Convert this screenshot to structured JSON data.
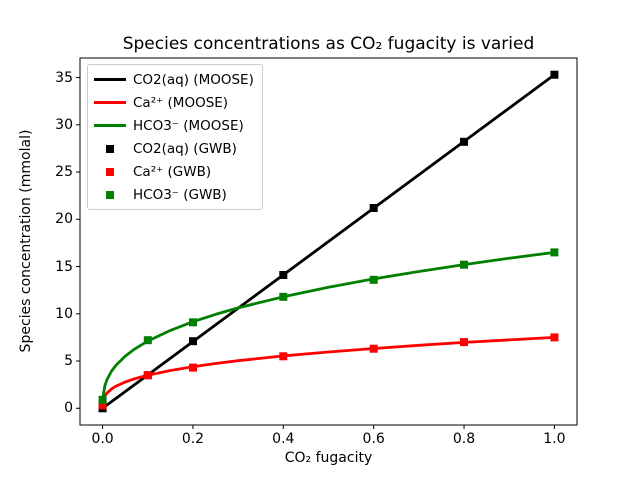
{
  "chart_data": {
    "type": "line",
    "title": "Species concentrations as CO₂ fugacity is varied",
    "xlabel": "CO₂ fugacity",
    "ylabel": "Species concentration (mmolal)",
    "grid": false,
    "legend_position": "upper left",
    "xlim": [
      -0.05,
      1.05
    ],
    "ylim": [
      -1.77,
      37.07
    ],
    "xticks": {
      "values": [
        0,
        0.2,
        0.4,
        0.6,
        0.8,
        1.0
      ],
      "labels": [
        "0.0",
        "0.2",
        "0.4",
        "0.6",
        "0.8",
        "1.0"
      ]
    },
    "yticks": {
      "values": [
        0,
        5,
        10,
        15,
        20,
        25,
        30,
        35
      ],
      "labels": [
        "0",
        "5",
        "10",
        "15",
        "20",
        "25",
        "30",
        "35"
      ]
    },
    "colors": {
      "co2aq": "#000000",
      "ca": "#ff0000",
      "hco3": "#008000"
    },
    "series": [
      {
        "id": "co2aq-moose",
        "name": "CO2(aq) (MOOSE)",
        "style": "line",
        "color": "#000000",
        "x": [
          0.0,
          1.0
        ],
        "y": [
          0.0,
          35.3
        ]
      },
      {
        "id": "ca-moose",
        "name": "Ca2+ (MOOSE)",
        "style": "line",
        "color": "#ff0000",
        "x": [
          0,
          0.005,
          0.01,
          0.02,
          0.03,
          0.05,
          0.07,
          0.1,
          0.15,
          0.2,
          0.25,
          0.3,
          0.4,
          0.5,
          0.6,
          0.7,
          0.8,
          0.9,
          1.0
        ],
        "y": [
          0.3,
          1.3,
          1.63,
          2.05,
          2.35,
          2.78,
          3.11,
          3.5,
          4.0,
          4.4,
          4.74,
          5.03,
          5.54,
          5.96,
          6.33,
          6.66,
          6.97,
          7.24,
          7.5
        ]
      },
      {
        "id": "hco3-moose",
        "name": "HCO3- (MOOSE)",
        "style": "line",
        "color": "#008000",
        "x": [
          0,
          0.005,
          0.01,
          0.02,
          0.03,
          0.05,
          0.07,
          0.1,
          0.15,
          0.2,
          0.25,
          0.3,
          0.4,
          0.5,
          0.6,
          0.7,
          0.8,
          0.9,
          1.0
        ],
        "y": [
          0.9,
          2.37,
          3.06,
          3.94,
          4.57,
          5.51,
          6.24,
          7.11,
          8.24,
          9.16,
          9.93,
          10.62,
          11.8,
          12.8,
          13.69,
          14.48,
          15.21,
          15.88,
          16.5
        ]
      },
      {
        "id": "co2aq-gwb",
        "name": "CO2(aq) (GWB)",
        "style": "marker",
        "color": "#000000",
        "x": [
          0.0,
          0.1,
          0.2,
          0.4,
          0.6,
          0.8,
          1.0
        ],
        "y": [
          0.0,
          3.5,
          7.1,
          14.1,
          21.2,
          28.2,
          35.3
        ]
      },
      {
        "id": "ca-gwb",
        "name": "Ca2+ (GWB)",
        "style": "marker",
        "color": "#ff0000",
        "x": [
          0.0,
          0.1,
          0.2,
          0.4,
          0.6,
          0.8,
          1.0
        ],
        "y": [
          0.3,
          3.5,
          4.3,
          5.5,
          6.3,
          7.0,
          7.5
        ]
      },
      {
        "id": "hco3-gwb",
        "name": "HCO3- (GWB)",
        "style": "marker",
        "color": "#008000",
        "x": [
          0.0,
          0.1,
          0.2,
          0.4,
          0.6,
          0.8,
          1.0
        ],
        "y": [
          0.9,
          7.2,
          9.1,
          11.8,
          13.6,
          15.2,
          16.5
        ]
      }
    ],
    "legend": [
      {
        "label": "CO2(aq) (MOOSE)",
        "type": "line",
        "color": "#000000"
      },
      {
        "label": "Ca²⁺ (MOOSE)",
        "type": "line",
        "color": "#ff0000"
      },
      {
        "label": "HCO3⁻ (MOOSE)",
        "type": "line",
        "color": "#008000"
      },
      {
        "label": "CO2(aq) (GWB)",
        "type": "marker",
        "color": "#000000"
      },
      {
        "label": "Ca²⁺ (GWB)",
        "type": "marker",
        "color": "#ff0000"
      },
      {
        "label": "HCO3⁻ (GWB)",
        "type": "marker",
        "color": "#008000"
      }
    ]
  }
}
